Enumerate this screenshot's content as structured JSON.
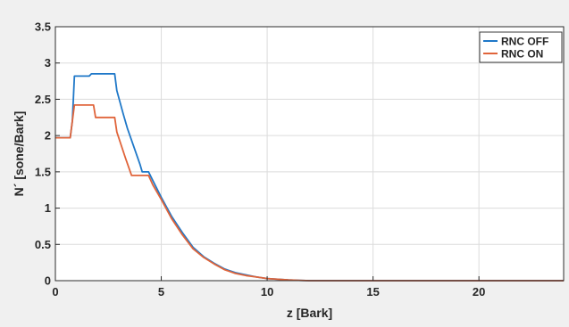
{
  "chart_data": {
    "type": "line",
    "xlabel": "z [Bark]",
    "ylabel": "N´ [sone/Bark]",
    "xlim": [
      0,
      24
    ],
    "ylim": [
      0,
      3.5
    ],
    "xticks": [
      0,
      5,
      10,
      15,
      20
    ],
    "yticks": [
      0,
      0.5,
      1,
      1.5,
      2,
      2.5,
      3,
      3.5
    ],
    "grid": true,
    "legend_position": "top-right",
    "series": [
      {
        "name": "RNC OFF",
        "color": "#1f78c8",
        "x": [
          0,
          0.7,
          0.8,
          0.9,
          1.6,
          1.7,
          2.8,
          2.9,
          3.2,
          3.4,
          4.0,
          4.1,
          4.4,
          4.6,
          5.0,
          5.5,
          6.0,
          6.5,
          7.0,
          7.5,
          8.0,
          8.5,
          9.0,
          9.5,
          10.0,
          10.5,
          11.0,
          11.5,
          12.0,
          14.0,
          24.0
        ],
        "values": [
          1.97,
          1.97,
          2.2,
          2.82,
          2.82,
          2.85,
          2.85,
          2.62,
          2.3,
          2.1,
          1.6,
          1.5,
          1.5,
          1.38,
          1.15,
          0.88,
          0.66,
          0.46,
          0.33,
          0.24,
          0.16,
          0.11,
          0.08,
          0.05,
          0.03,
          0.02,
          0.01,
          0.005,
          0.0,
          0.0,
          0.0
        ]
      },
      {
        "name": "RNC ON",
        "color": "#e0643a",
        "x": [
          0,
          0.7,
          0.8,
          0.9,
          1.8,
          1.9,
          2.8,
          2.9,
          3.3,
          3.6,
          4.4,
          4.6,
          5.0,
          5.5,
          6.0,
          6.5,
          7.0,
          7.5,
          8.0,
          8.5,
          9.0,
          9.5,
          10.0,
          10.5,
          11.0,
          11.5,
          12.0,
          14.0,
          24.0
        ],
        "values": [
          1.97,
          1.97,
          2.2,
          2.42,
          2.42,
          2.25,
          2.25,
          2.05,
          1.7,
          1.45,
          1.45,
          1.32,
          1.12,
          0.85,
          0.63,
          0.44,
          0.32,
          0.23,
          0.15,
          0.1,
          0.07,
          0.05,
          0.03,
          0.02,
          0.01,
          0.005,
          0.0,
          0.0,
          0.0
        ]
      }
    ]
  }
}
